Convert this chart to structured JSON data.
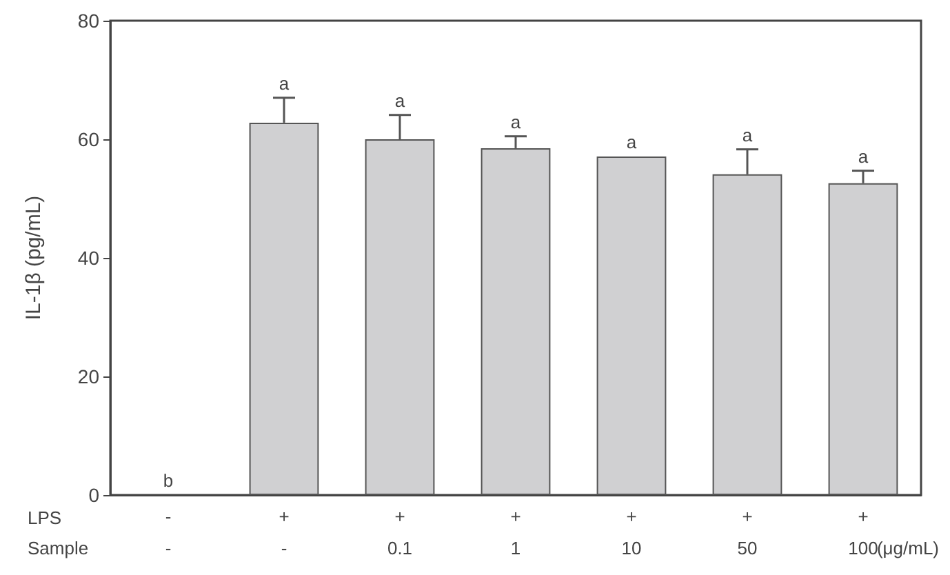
{
  "chart_data": {
    "type": "bar",
    "ylabel": "IL-1β (pg/mL)",
    "categories": [
      "-\n-",
      "+\n-",
      "+\n0.1",
      "+\n1",
      "+\n10",
      "+\n50",
      "+\n100"
    ],
    "values": [
      0,
      62.8,
      60.0,
      58.5,
      57.1,
      54.1,
      52.6
    ],
    "errors": [
      null,
      [
        62.8,
        67.0
      ],
      [
        60.0,
        64.1
      ],
      [
        58.5,
        60.5
      ],
      null,
      [
        54.1,
        58.3
      ],
      [
        52.6,
        54.7
      ]
    ],
    "value_labels": [
      "b",
      "a",
      "a",
      "a",
      "a",
      "a",
      "a"
    ],
    "color": "#d0d0d2",
    "ylim": [
      0,
      80
    ],
    "yticks": [
      0,
      20,
      40,
      60,
      80
    ],
    "grid": false,
    "annotations": [
      "LPS",
      "Sample",
      "(μg/mL)"
    ]
  }
}
